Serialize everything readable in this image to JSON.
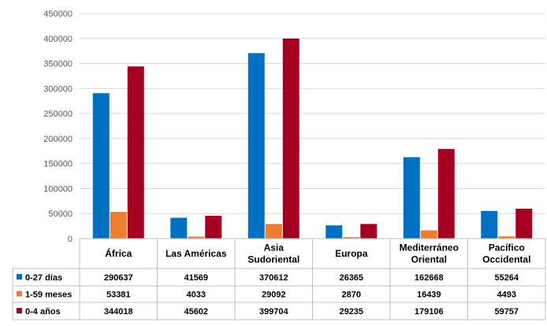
{
  "chart_data": {
    "type": "bar",
    "categories": [
      "África",
      "Las Américas",
      "Asia Sudoriental",
      "Europa",
      "Mediterráneo Oriental",
      "Pacífico Occidental"
    ],
    "category_lines": [
      [
        "África"
      ],
      [
        "Las Américas"
      ],
      [
        "Asia",
        "Sudoriental"
      ],
      [
        "Europa"
      ],
      [
        "Mediterráneo",
        "Oriental"
      ],
      [
        "Pacífico",
        "Occidental"
      ]
    ],
    "series": [
      {
        "name": "0-27 días",
        "color": "#0070C0",
        "values": [
          290637,
          41569,
          370612,
          26365,
          162668,
          55264
        ]
      },
      {
        "name": "1-59 meses",
        "color": "#ED7D31",
        "values": [
          53381,
          4033,
          29092,
          2870,
          16439,
          4493
        ]
      },
      {
        "name": "0-4 años",
        "color": "#A50021",
        "values": [
          344018,
          45602,
          399704,
          29235,
          179106,
          59757
        ]
      }
    ],
    "ylim": [
      0,
      450000
    ],
    "yticks": [
      "0",
      "50000",
      "100000",
      "150000",
      "200000",
      "250000",
      "300000",
      "350000",
      "400000",
      "450000"
    ],
    "grid": true,
    "legend": "data-table"
  }
}
